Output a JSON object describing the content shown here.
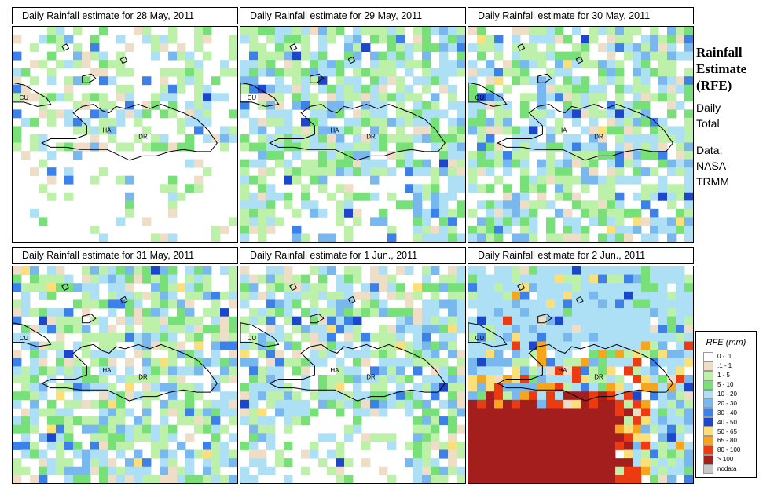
{
  "panels": [
    {
      "title": "Daily Rainfall estimate for  28 May, 2011",
      "seed": 11,
      "regime": "light"
    },
    {
      "title": "Daily Rainfall estimate for  29 May, 2011",
      "seed": 23,
      "regime": "wet"
    },
    {
      "title": "Daily Rainfall estimate for  30 May, 2011",
      "seed": 37,
      "regime": "medium"
    },
    {
      "title": "Daily Rainfall estimate for  31 May, 2011",
      "seed": 41,
      "regime": "medium"
    },
    {
      "title": "Daily Rainfall estimate for  1 Jun., 2011",
      "seed": 53,
      "regime": "wet2"
    },
    {
      "title": "Daily Rainfall estimate for  2 Jun., 2011",
      "seed": 67,
      "regime": "extreme"
    }
  ],
  "map_labels": {
    "cu": "CU",
    "ha": "HA",
    "dr": "DR"
  },
  "sidebar": {
    "title_lines": [
      "Rainfall",
      "Estimate",
      "(RFE)"
    ],
    "subtitle_lines": [
      "Daily",
      "Total"
    ],
    "data_lines": [
      "Data:",
      "NASA-",
      "TRMM"
    ]
  },
  "legend": {
    "title": "RFE (mm)",
    "items": [
      {
        "label": "0 - .1",
        "color": "#ffffff"
      },
      {
        "label": ".1 - 1",
        "color": "#eedec8"
      },
      {
        "label": "1 - 5",
        "color": "#bdf0a8"
      },
      {
        "label": "5 - 10",
        "color": "#78e078"
      },
      {
        "label": "10 - 20",
        "color": "#aee0f5"
      },
      {
        "label": "20 - 30",
        "color": "#78b8ee"
      },
      {
        "label": "30 - 40",
        "color": "#3c80ea"
      },
      {
        "label": "40 - 50",
        "color": "#1c46cc"
      },
      {
        "label": "50 - 65",
        "color": "#fbe07a"
      },
      {
        "label": "65 - 80",
        "color": "#f5a61e"
      },
      {
        "label": "80 - 100",
        "color": "#ee3a10"
      },
      {
        "label": "> 100",
        "color": "#a41e1e"
      },
      {
        "label": "nodata",
        "color": "#c8c8c8"
      }
    ]
  }
}
